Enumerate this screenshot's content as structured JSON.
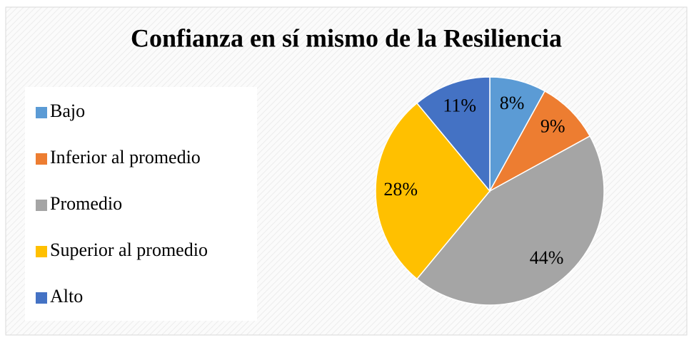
{
  "chart_data": {
    "type": "pie",
    "title": "Confianza en sí mismo de la Resiliencia",
    "categories": [
      "Bajo",
      "Inferior al promedio",
      "Promedio",
      "Superior al promedio",
      "Alto"
    ],
    "values": [
      8,
      9,
      44,
      28,
      11
    ],
    "value_labels": [
      "8%",
      "9%",
      "44%",
      "28%",
      "11%"
    ],
    "colors": [
      "#5b9bd5",
      "#ed7d31",
      "#a5a5a5",
      "#ffc000",
      "#4472c4"
    ],
    "legend": "left"
  }
}
